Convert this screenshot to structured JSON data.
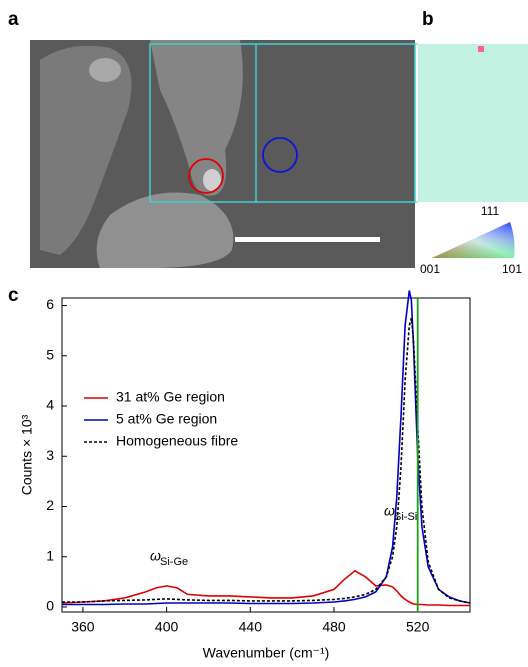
{
  "panels": {
    "a": "a",
    "b": "b",
    "c": "c"
  },
  "orientation_key": {
    "top": "111",
    "left": "001",
    "right": "101"
  },
  "chart_data": {
    "type": "line",
    "x_label": "Wavenumber (cm⁻¹)",
    "y_label": "Counts × 10³",
    "x": [
      350,
      360,
      370,
      380,
      390,
      395,
      400,
      405,
      410,
      420,
      430,
      440,
      450,
      460,
      470,
      480,
      485,
      490,
      495,
      500,
      505,
      508,
      510,
      512,
      514,
      516,
      517,
      518,
      520,
      522,
      525,
      530,
      535,
      540,
      545
    ],
    "series": [
      {
        "name": "31 at% Ge region",
        "color": "#e00000",
        "dash": false,
        "values": [
          0.08,
          0.1,
          0.12,
          0.18,
          0.3,
          0.38,
          0.42,
          0.38,
          0.25,
          0.22,
          0.22,
          0.2,
          0.18,
          0.18,
          0.22,
          0.35,
          0.55,
          0.72,
          0.6,
          0.42,
          0.44,
          0.4,
          0.32,
          0.22,
          0.15,
          0.1,
          0.08,
          0.06,
          0.05,
          0.05,
          0.04,
          0.04,
          0.03,
          0.03,
          0.03
        ]
      },
      {
        "name": "5 at% Ge region",
        "color": "#0000c8",
        "dash": false,
        "values": [
          0.05,
          0.05,
          0.05,
          0.06,
          0.06,
          0.07,
          0.08,
          0.08,
          0.08,
          0.08,
          0.08,
          0.07,
          0.07,
          0.07,
          0.08,
          0.1,
          0.12,
          0.15,
          0.2,
          0.3,
          0.6,
          1.2,
          2.2,
          3.8,
          5.6,
          6.3,
          6.1,
          5.2,
          3.0,
          1.6,
          0.8,
          0.35,
          0.2,
          0.12,
          0.08
        ]
      },
      {
        "name": "Homogeneous fibre",
        "color": "#000000",
        "dash": true,
        "values": [
          0.1,
          0.1,
          0.12,
          0.13,
          0.14,
          0.15,
          0.16,
          0.15,
          0.14,
          0.13,
          0.13,
          0.12,
          0.12,
          0.12,
          0.13,
          0.15,
          0.17,
          0.2,
          0.25,
          0.35,
          0.6,
          1.0,
          1.6,
          2.8,
          4.5,
          5.6,
          5.75,
          5.3,
          3.6,
          2.0,
          0.9,
          0.35,
          0.18,
          0.12,
          0.08
        ]
      }
    ],
    "reference_line": {
      "x": 520,
      "color": "#1aa01a"
    },
    "annotations": [
      {
        "symbol": "ω",
        "sub": "Si-Ge"
      },
      {
        "symbol": "ω",
        "sub": "Si-Si"
      }
    ],
    "xlim": [
      350,
      545
    ],
    "xticks": [
      360,
      400,
      440,
      480,
      520
    ],
    "ylim": [
      -0.1,
      6.15
    ],
    "yticks": [
      0,
      1,
      2,
      3,
      4,
      5,
      6
    ],
    "legend": "upper-left"
  }
}
